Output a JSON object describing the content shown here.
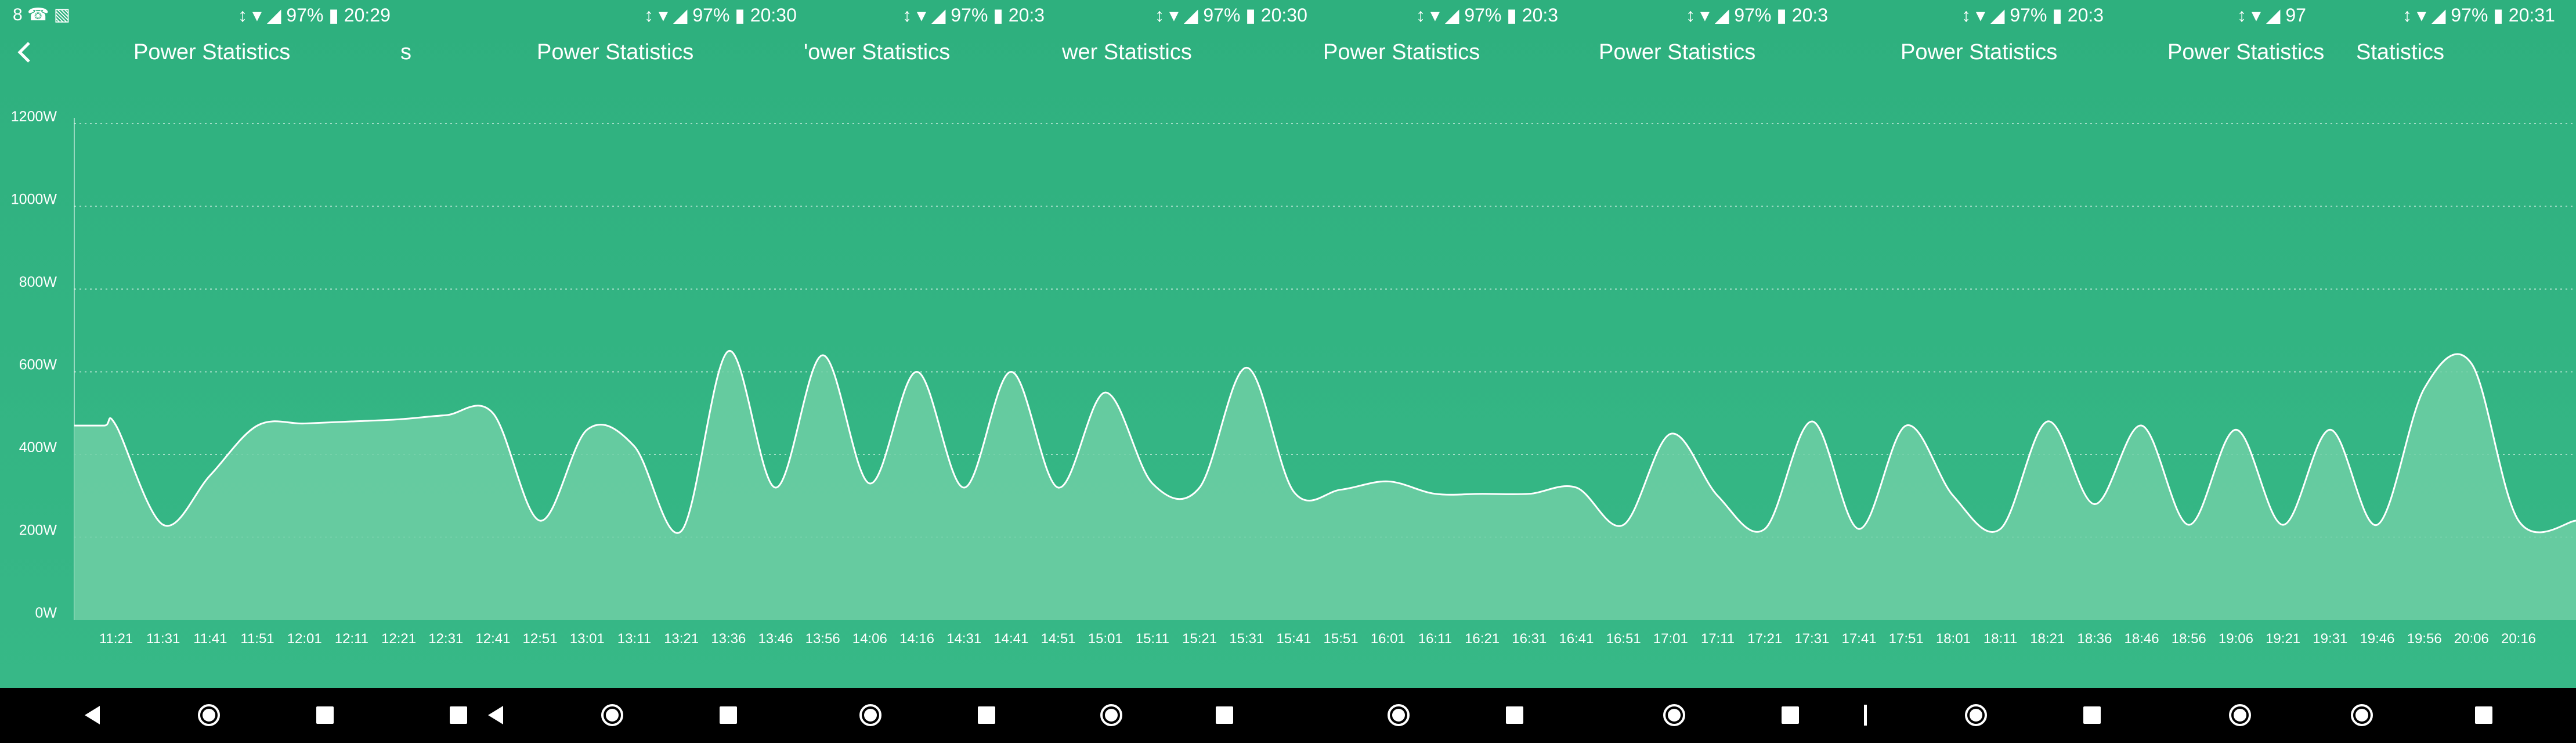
{
  "status_bars": [
    {
      "text": "↕ ▾ ◢ 97% ▮ 20:29"
    },
    {
      "text": "↕ ▾ ◢ 97% ▮ 20:30"
    },
    {
      "text": "↕ ▾ ◢ 97% ▮ 20:3"
    },
    {
      "text": "↕ ▾ ◢ 97% ▮ 20:30"
    },
    {
      "text": "↕ ▾ ◢ 97% ▮ 20:3"
    },
    {
      "text": "↕ ▾ ◢ 97% ▮ 20:3"
    },
    {
      "text": "↕ ▾ ◢ 97% ▮ 20:3"
    },
    {
      "text": "↕ ▾ ◢ 97"
    },
    {
      "text": "↕ ▾ ◢ 97% ▮ 20:31"
    }
  ],
  "status_left_icons": "8 ☎ ▧",
  "titles": [
    "Power Statistics",
    "s",
    "Power Statistics",
    "'ower Statistics",
    "wer Statistics",
    "Power Statistics",
    "Power Statistics",
    "Power Statistics",
    "Power Statistics",
    "Statistics"
  ],
  "back_icon": "chevron-left-icon",
  "colors": {
    "background": "#35b684",
    "area_fill": "#6ecfa5",
    "line": "#ffffff",
    "nav_bar": "#000000"
  },
  "chart_data": {
    "type": "area",
    "ylim": [
      0,
      1200
    ],
    "y_ticks": [
      "0W",
      "200W",
      "400W",
      "600W",
      "800W",
      "1000W",
      "1200W"
    ],
    "y_tick_values": [
      0,
      200,
      400,
      600,
      800,
      1000,
      1200
    ],
    "grid": true,
    "x": [
      "11:21",
      "11:31",
      "11:41",
      "11:51",
      "12:01",
      "12:11",
      "12:21",
      "12:31",
      "12:41",
      "12:51",
      "13:01",
      "13:11",
      "13:21",
      "13:36",
      "13:46",
      "13:56",
      "14:06",
      "14:16",
      "14:31",
      "14:41",
      "14:51",
      "15:01",
      "15:11",
      "15:21",
      "15:31",
      "15:41",
      "15:51",
      "16:01",
      "16:11",
      "16:21",
      "16:31",
      "16:41",
      "16:51",
      "17:01",
      "17:11",
      "17:21",
      "17:31",
      "17:41",
      "17:51",
      "18:01",
      "18:11",
      "18:21",
      "18:36",
      "18:46",
      "18:56",
      "19:06",
      "19:21",
      "19:31",
      "19:46",
      "19:56",
      "20:06",
      "20:16"
    ],
    "values": [
      470,
      230,
      350,
      470,
      475,
      480,
      485,
      495,
      500,
      240,
      460,
      420,
      215,
      650,
      320,
      640,
      330,
      600,
      320,
      600,
      320,
      550,
      330,
      320,
      610,
      310,
      315,
      335,
      305,
      305,
      305,
      320,
      230,
      450,
      300,
      220,
      480,
      220,
      470,
      300,
      220,
      480,
      280,
      470,
      230,
      460,
      230,
      460,
      230,
      560,
      620,
      240
    ]
  },
  "nav_buttons": [
    {
      "icon": "back-triangle-icon"
    },
    {
      "icon": "home-circle-icon"
    },
    {
      "icon": "recents-square-icon"
    },
    {
      "icon": "recents-square-icon"
    },
    {
      "icon": "back-triangle-icon"
    },
    {
      "icon": "home-circle-icon"
    },
    {
      "icon": "recents-square-icon"
    },
    {
      "icon": "home-circle-icon"
    },
    {
      "icon": "recents-square-icon"
    },
    {
      "icon": "home-circle-icon"
    },
    {
      "icon": "recents-square-icon"
    },
    {
      "icon": "home-circle-icon"
    },
    {
      "icon": "recents-square-icon"
    },
    {
      "icon": "home-circle-icon"
    },
    {
      "icon": "recents-square-icon"
    },
    {
      "icon": "back-bar-icon"
    },
    {
      "icon": "home-circle-icon"
    },
    {
      "icon": "recents-square-icon"
    },
    {
      "icon": "home-circle-icon"
    },
    {
      "icon": "home-circle-icon"
    },
    {
      "icon": "recents-square-icon"
    }
  ]
}
